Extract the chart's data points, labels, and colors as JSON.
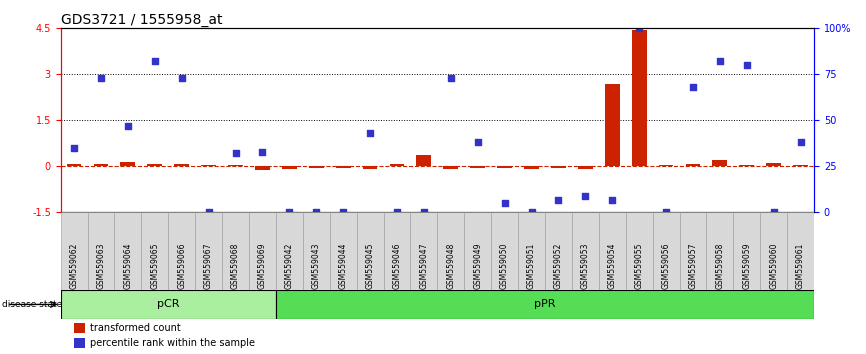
{
  "title": "GDS3721 / 1555958_at",
  "samples": [
    "GSM559062",
    "GSM559063",
    "GSM559064",
    "GSM559065",
    "GSM559066",
    "GSM559067",
    "GSM559068",
    "GSM559069",
    "GSM559042",
    "GSM559043",
    "GSM559044",
    "GSM559045",
    "GSM559046",
    "GSM559047",
    "GSM559048",
    "GSM559049",
    "GSM559050",
    "GSM559051",
    "GSM559052",
    "GSM559053",
    "GSM559054",
    "GSM559055",
    "GSM559056",
    "GSM559057",
    "GSM559058",
    "GSM559059",
    "GSM559060",
    "GSM559061"
  ],
  "transformed_count": [
    0.07,
    0.07,
    0.15,
    0.07,
    0.07,
    0.05,
    0.05,
    -0.12,
    -0.1,
    -0.05,
    -0.05,
    -0.07,
    0.07,
    0.38,
    -0.07,
    -0.05,
    -0.05,
    -0.1,
    -0.05,
    -0.07,
    2.7,
    4.45,
    0.05,
    0.07,
    0.2,
    0.05,
    0.12,
    0.05
  ],
  "percentile_rank_pct": [
    35,
    73,
    47,
    82,
    73,
    0,
    32,
    33,
    0,
    0,
    0,
    43,
    0,
    0,
    73,
    38,
    5,
    0,
    7,
    9,
    7,
    100,
    0,
    68,
    82,
    80,
    0,
    38
  ],
  "groups": [
    {
      "label": "pCR",
      "start": 0,
      "end": 8,
      "color": "#aaeea0"
    },
    {
      "label": "pPR",
      "start": 8,
      "end": 28,
      "color": "#55dd55"
    }
  ],
  "ylim_left": [
    -1.5,
    4.5
  ],
  "ylim_right": [
    0,
    100
  ],
  "yticks_left": [
    -1.5,
    0.0,
    1.5,
    3.0,
    4.5
  ],
  "ytick_left_labels": [
    "-1.5",
    "0",
    "1.5",
    "3",
    "4.5"
  ],
  "yticks_right": [
    0,
    25,
    50,
    75,
    100
  ],
  "ytick_right_labels": [
    "0",
    "25",
    "50",
    "75",
    "100%"
  ],
  "hlines": [
    1.5,
    3.0
  ],
  "bar_color": "#cc2200",
  "dot_color": "#3333cc",
  "zero_line_color": "#cc2200",
  "legend_items": [
    {
      "label": "transformed count",
      "color": "#cc2200"
    },
    {
      "label": "percentile rank within the sample",
      "color": "#3333cc"
    }
  ],
  "title_fontsize": 10,
  "tick_fontsize": 7,
  "bar_width": 0.55,
  "dot_size": 18,
  "pcr_count": 8,
  "ppr_count": 20
}
